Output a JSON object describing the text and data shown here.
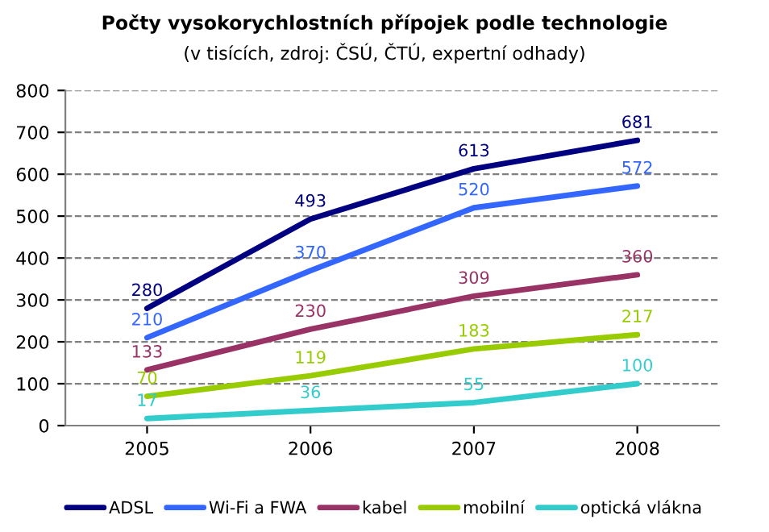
{
  "chart_data": {
    "type": "line",
    "title": "Počty vysokorychlostních přípojek podle technologie",
    "subtitle": "(v tisících, zdroj: ČSÚ, ČTÚ, expertní odhady)",
    "categories": [
      "2005",
      "2006",
      "2007",
      "2008"
    ],
    "series": [
      {
        "name": "ADSL",
        "color": "#000080",
        "values": [
          280,
          493,
          613,
          681
        ]
      },
      {
        "name": "Wi-Fi a FWA",
        "color": "#3366ff",
        "values": [
          210,
          370,
          520,
          572
        ]
      },
      {
        "name": "kabel",
        "color": "#993366",
        "values": [
          133,
          230,
          309,
          360
        ]
      },
      {
        "name": "mobilní",
        "color": "#99cc00",
        "values": [
          70,
          119,
          183,
          217
        ]
      },
      {
        "name": "optická vlákna",
        "color": "#33cccc",
        "values": [
          17,
          36,
          55,
          100
        ]
      }
    ],
    "ylim": [
      0,
      800
    ],
    "yticks": [
      0,
      100,
      200,
      300,
      400,
      500,
      600,
      700,
      800
    ],
    "grid": "y",
    "legend": "bottom",
    "data_labels": true,
    "marker": "none",
    "line_style": "solid"
  }
}
